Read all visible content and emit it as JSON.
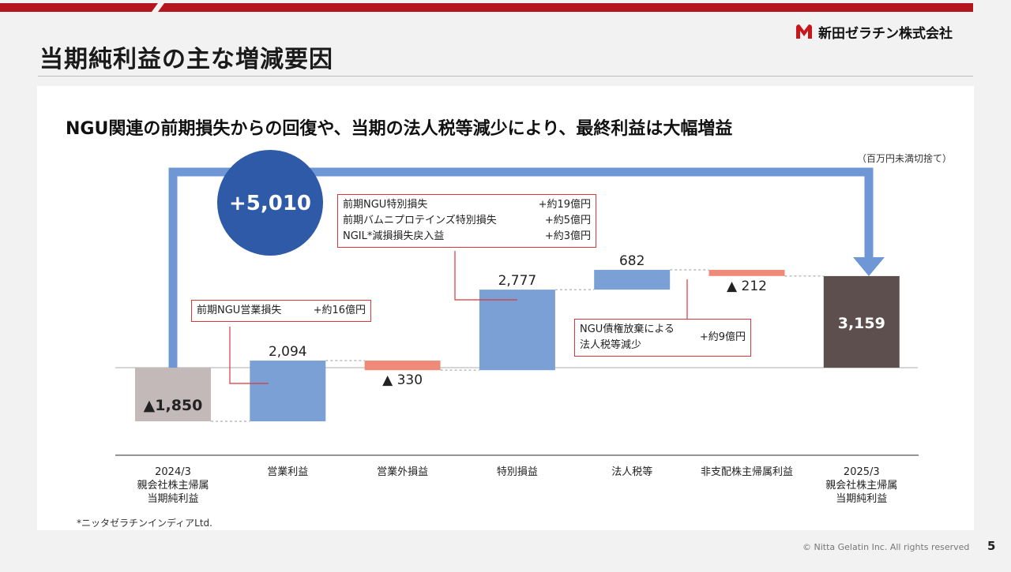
{
  "page": {
    "title": "当期純利益の主な増減要因",
    "logo_text": "新田ゼラチン株式会社",
    "subtitle": "NGU関連の前期損失からの回復や、当期の法人税等減少により、最終利益は大幅増益",
    "unit_note": "（百万円未満切捨て）",
    "footnote": "*ニッタゼラチンインディアLtd.",
    "copyright": "© Nitta Gelatin Inc. All rights reserved",
    "page_number": "5",
    "colors": {
      "accent_red": "#b5151c",
      "increase": "#7aa0d6",
      "decrease": "#f08a78",
      "start": "#c4b9b9",
      "end": "#5d4f4e",
      "arrow": "#6f97d6",
      "bubble": "#2e5aa8",
      "callout_border": "#d9363e"
    }
  },
  "chart_data": {
    "type": "waterfall",
    "categories": [
      "2024/3\n親会社株主帰属\n当期純利益",
      "営業利益",
      "営業外損益",
      "特別損益",
      "法人税等",
      "非支配株主帰属利益",
      "2025/3\n親会社株主帰属\n当期純利益"
    ],
    "values": [
      -1850,
      2094,
      -330,
      2777,
      682,
      -212,
      3159
    ],
    "kinds": [
      "start",
      "increase",
      "decrease",
      "increase",
      "increase",
      "decrease",
      "end"
    ],
    "data_labels": [
      "▲1,850",
      "2,094",
      "▲ 330",
      "2,777",
      "682",
      "▲ 212",
      "3,159"
    ],
    "total_change_label": "+5,010",
    "ylim": [
      -2300,
      3700
    ],
    "callouts": [
      {
        "target": 1,
        "rows": [
          [
            "前期NGU営業損失",
            "+約16億円"
          ]
        ]
      },
      {
        "target": 3,
        "rows": [
          [
            "前期NGU特別損失",
            "+約19億円"
          ],
          [
            "前期バムニプロテインズ特別損失",
            "+約5億円"
          ],
          [
            "NGIL*減損損失戻入益",
            "+約3億円"
          ]
        ]
      },
      {
        "target": 4,
        "rows": [
          [
            "NGU債権放棄による\n法人税等減少",
            "+約9億円"
          ]
        ]
      }
    ]
  }
}
